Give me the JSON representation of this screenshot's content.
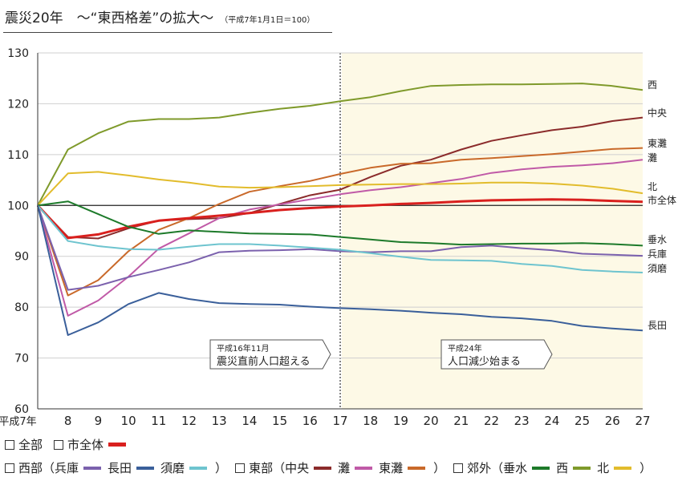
{
  "title": "震災20年　～“東西格差”の拡大～",
  "subtitle": "（平成7年1月1日＝100）",
  "chart_data": {
    "type": "line",
    "x": [
      "平成7年",
      "8",
      "9",
      "10",
      "11",
      "12",
      "13",
      "14",
      "15",
      "16",
      "17",
      "18",
      "19",
      "20",
      "21",
      "22",
      "23",
      "24",
      "25",
      "26",
      "27"
    ],
    "ylim": [
      60,
      130
    ],
    "yticks": [
      60,
      70,
      80,
      90,
      100,
      110,
      120,
      130
    ],
    "grid": "horizontal",
    "reference_line": 100,
    "shaded_from": "17",
    "series": [
      {
        "name": "西",
        "color": "#7f9a2b",
        "width": 2,
        "values": [
          100,
          111,
          114.2,
          116.5,
          117,
          117,
          117.3,
          118.2,
          119,
          119.6,
          120.5,
          121.3,
          122.5,
          123.5,
          123.7,
          123.8,
          123.8,
          123.9,
          124,
          123.5,
          122.7
        ]
      },
      {
        "name": "中央",
        "color": "#8b2b2b",
        "width": 2,
        "values": [
          100,
          93.8,
          93.5,
          95.5,
          97,
          97.3,
          97.5,
          98.5,
          100.3,
          102,
          103.1,
          105.6,
          107.8,
          109,
          111,
          112.7,
          113.8,
          114.8,
          115.5,
          116.6,
          117.3
        ]
      },
      {
        "name": "東灘",
        "color": "#c9692a",
        "width": 2,
        "values": [
          100,
          82.3,
          85.3,
          91,
          95.2,
          97.5,
          100.3,
          102.7,
          103.8,
          104.8,
          106.2,
          107.4,
          108.2,
          108.3,
          109,
          109.3,
          109.7,
          110.1,
          110.6,
          111.1,
          111.3
        ]
      },
      {
        "name": "灘",
        "color": "#c05aa7",
        "width": 2,
        "values": [
          100,
          78.3,
          81.3,
          86,
          91.5,
          94.5,
          97.5,
          99.2,
          100.2,
          101.2,
          102.2,
          103,
          103.6,
          104.4,
          105.2,
          106.4,
          107.1,
          107.6,
          107.9,
          108.3,
          109
        ]
      },
      {
        "name": "北",
        "color": "#e2bc2c",
        "width": 2,
        "values": [
          100,
          106.3,
          106.6,
          105.9,
          105.1,
          104.5,
          103.7,
          103.5,
          103.6,
          103.8,
          104,
          104.1,
          104.2,
          104.2,
          104.3,
          104.5,
          104.5,
          104.3,
          103.9,
          103.3,
          102.4
        ]
      },
      {
        "name": "市全体",
        "color": "#d9201e",
        "width": 3,
        "values": [
          100,
          93.6,
          94.3,
          95.8,
          97,
          97.5,
          98,
          98.5,
          99.1,
          99.5,
          99.8,
          100,
          100.3,
          100.5,
          100.8,
          101,
          101.1,
          101.2,
          101.1,
          100.9,
          100.7
        ]
      },
      {
        "name": "垂水",
        "color": "#1d7a2a",
        "width": 2,
        "values": [
          100,
          100.8,
          98.3,
          95.8,
          94.4,
          95.1,
          94.8,
          94.5,
          94.4,
          94.3,
          93.8,
          93.3,
          92.8,
          92.6,
          92.3,
          92.4,
          92.5,
          92.5,
          92.6,
          92.4,
          92.1
        ]
      },
      {
        "name": "兵庫",
        "color": "#7b61ad",
        "width": 2,
        "values": [
          100,
          83.4,
          84.2,
          85.9,
          87.3,
          88.8,
          90.8,
          91.1,
          91.2,
          91.4,
          91,
          90.8,
          91,
          91,
          91.8,
          92.1,
          91.6,
          91.2,
          90.5,
          90.3,
          90.1
        ]
      },
      {
        "name": "須磨",
        "color": "#6ec4cf",
        "width": 2,
        "values": [
          100,
          93,
          92,
          91.4,
          91.3,
          91.9,
          92.4,
          92.4,
          92.1,
          91.7,
          91.3,
          90.6,
          89.9,
          89.3,
          89.2,
          89.1,
          88.5,
          88.1,
          87.3,
          87,
          86.8
        ]
      },
      {
        "name": "長田",
        "color": "#3a5f9a",
        "width": 2,
        "values": [
          100,
          74.5,
          77,
          80.6,
          82.8,
          81.6,
          80.8,
          80.6,
          80.5,
          80.1,
          79.8,
          79.6,
          79.3,
          78.9,
          78.6,
          78.1,
          77.8,
          77.3,
          76.3,
          75.8,
          75.4
        ]
      }
    ],
    "annotations": [
      {
        "at": "16",
        "line1": "平成16年11月",
        "line2": "震災直前人口超える"
      },
      {
        "at": "23",
        "line1": "平成24年",
        "line2": "人口減少始まる"
      }
    ]
  },
  "legend": {
    "all": "全部",
    "city": "市全体",
    "west_group": "西部（兵庫",
    "nagata": "長田",
    "suma": "須磨",
    "east_group": "東部（中央",
    "nada": "灘",
    "higashinada": "東灘",
    "suburb_group": "郊外（垂水",
    "nishi": "西",
    "kita": "北",
    "close": "）"
  }
}
